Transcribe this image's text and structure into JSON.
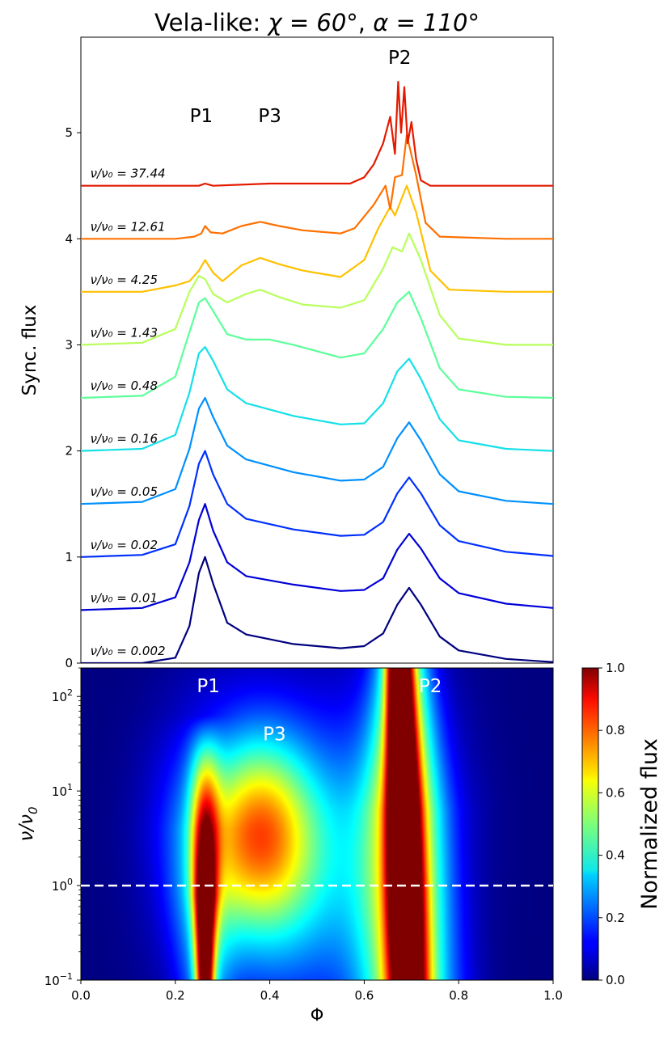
{
  "chart_data": [
    {
      "type": "line",
      "title_parts": {
        "prefix": "Vela-like: ",
        "chi": "χ = 60°",
        "sep": ",  ",
        "alpha": "α = 110°"
      },
      "ylabel": "Sync. flux",
      "xlim": [
        0.0,
        1.0
      ],
      "ylim": [
        0.0,
        5.9
      ],
      "yticks": [
        "0",
        "1",
        "2",
        "3",
        "4",
        "5"
      ],
      "grid": false,
      "offset_step": 0.5,
      "peak_labels": [
        "P1",
        "P3",
        "P2"
      ],
      "peak_label_positions": [
        {
          "label": "P1",
          "x": 0.255,
          "y": 5.1
        },
        {
          "label": "P3",
          "x": 0.4,
          "y": 5.1
        },
        {
          "label": "P2",
          "x": 0.675,
          "y": 5.65
        }
      ],
      "series": [
        {
          "name": "ν/ν₀ = 0.002",
          "label_text": "ν/ν₀ = 0.002",
          "offset": 0.0,
          "color": "#00007f",
          "x": [
            0.0,
            0.13,
            0.2,
            0.23,
            0.25,
            0.263,
            0.28,
            0.31,
            0.35,
            0.45,
            0.55,
            0.6,
            0.64,
            0.67,
            0.695,
            0.72,
            0.76,
            0.8,
            0.9,
            1.0
          ],
          "y": [
            0.0,
            0.0,
            0.05,
            0.35,
            0.85,
            1.0,
            0.75,
            0.38,
            0.27,
            0.18,
            0.14,
            0.16,
            0.28,
            0.55,
            0.71,
            0.55,
            0.25,
            0.12,
            0.04,
            0.01
          ]
        },
        {
          "name": "ν/ν₀ = 0.01",
          "label_text": "ν/ν₀ = 0.01",
          "offset": 0.5,
          "color": "#0000d8",
          "x": [
            0.0,
            0.13,
            0.2,
            0.23,
            0.25,
            0.263,
            0.28,
            0.31,
            0.35,
            0.45,
            0.55,
            0.6,
            0.64,
            0.67,
            0.695,
            0.72,
            0.76,
            0.8,
            0.9,
            1.0
          ],
          "y": [
            0.0,
            0.02,
            0.12,
            0.45,
            0.85,
            1.0,
            0.75,
            0.45,
            0.32,
            0.24,
            0.18,
            0.19,
            0.3,
            0.57,
            0.72,
            0.58,
            0.3,
            0.16,
            0.06,
            0.02
          ]
        },
        {
          "name": "ν/ν₀ = 0.02",
          "label_text": "ν/ν₀ = 0.02",
          "offset": 1.0,
          "color": "#0030ff",
          "x": [
            0.0,
            0.13,
            0.2,
            0.23,
            0.25,
            0.263,
            0.28,
            0.31,
            0.35,
            0.45,
            0.55,
            0.6,
            0.64,
            0.67,
            0.695,
            0.72,
            0.76,
            0.8,
            0.9,
            1.0
          ],
          "y": [
            0.0,
            0.02,
            0.12,
            0.48,
            0.88,
            1.0,
            0.78,
            0.5,
            0.36,
            0.26,
            0.2,
            0.21,
            0.33,
            0.6,
            0.75,
            0.6,
            0.3,
            0.15,
            0.05,
            0.01
          ]
        },
        {
          "name": "ν/ν₀ = 0.05",
          "label_text": "ν/ν₀ = 0.05",
          "offset": 1.5,
          "color": "#0090ff",
          "x": [
            0.0,
            0.13,
            0.2,
            0.23,
            0.25,
            0.263,
            0.28,
            0.31,
            0.35,
            0.45,
            0.55,
            0.6,
            0.64,
            0.67,
            0.695,
            0.72,
            0.76,
            0.8,
            0.9,
            1.0
          ],
          "y": [
            0.0,
            0.02,
            0.14,
            0.52,
            0.9,
            1.0,
            0.82,
            0.55,
            0.42,
            0.3,
            0.22,
            0.23,
            0.35,
            0.62,
            0.77,
            0.6,
            0.28,
            0.12,
            0.03,
            0.0
          ]
        },
        {
          "name": "ν/ν₀ = 0.16",
          "label_text": "ν/ν₀ = 0.16",
          "offset": 2.0,
          "color": "#15e0e8",
          "x": [
            0.0,
            0.13,
            0.2,
            0.23,
            0.25,
            0.263,
            0.28,
            0.31,
            0.35,
            0.45,
            0.55,
            0.6,
            0.64,
            0.67,
            0.695,
            0.72,
            0.76,
            0.8,
            0.9,
            1.0
          ],
          "y": [
            0.0,
            0.02,
            0.15,
            0.55,
            0.92,
            0.98,
            0.85,
            0.58,
            0.45,
            0.33,
            0.25,
            0.26,
            0.45,
            0.75,
            0.87,
            0.68,
            0.3,
            0.1,
            0.02,
            0.0
          ]
        },
        {
          "name": "ν/ν₀ = 0.48",
          "label_text": "ν/ν₀ = 0.48",
          "offset": 2.5,
          "color": "#5cff9a",
          "x": [
            0.0,
            0.13,
            0.2,
            0.23,
            0.25,
            0.263,
            0.28,
            0.31,
            0.35,
            0.4,
            0.45,
            0.55,
            0.6,
            0.64,
            0.67,
            0.695,
            0.72,
            0.76,
            0.8,
            0.9,
            1.0
          ],
          "y": [
            0.0,
            0.02,
            0.2,
            0.62,
            0.9,
            0.94,
            0.82,
            0.6,
            0.55,
            0.55,
            0.5,
            0.38,
            0.42,
            0.65,
            0.9,
            1.0,
            0.75,
            0.28,
            0.08,
            0.01,
            0.0
          ]
        },
        {
          "name": "ν/ν₀ = 1.43",
          "label_text": "ν/ν₀ = 1.43",
          "offset": 3.0,
          "color": "#b8ff5c",
          "x": [
            0.0,
            0.13,
            0.2,
            0.23,
            0.25,
            0.263,
            0.28,
            0.31,
            0.35,
            0.38,
            0.42,
            0.47,
            0.55,
            0.6,
            0.64,
            0.66,
            0.68,
            0.695,
            0.72,
            0.76,
            0.8,
            0.9,
            1.0
          ],
          "y": [
            0.0,
            0.02,
            0.15,
            0.5,
            0.65,
            0.62,
            0.48,
            0.4,
            0.48,
            0.52,
            0.45,
            0.38,
            0.35,
            0.42,
            0.72,
            0.92,
            0.88,
            1.05,
            0.8,
            0.28,
            0.06,
            0.0,
            0.0
          ]
        },
        {
          "name": "ν/ν₀ = 4.25",
          "label_text": "ν/ν₀ = 4.25",
          "offset": 3.5,
          "color": "#ffc000",
          "x": [
            0.0,
            0.13,
            0.2,
            0.23,
            0.25,
            0.263,
            0.28,
            0.3,
            0.34,
            0.38,
            0.42,
            0.47,
            0.55,
            0.6,
            0.63,
            0.655,
            0.665,
            0.69,
            0.71,
            0.74,
            0.78,
            0.9,
            1.0
          ],
          "y": [
            0.0,
            0.0,
            0.06,
            0.1,
            0.2,
            0.3,
            0.18,
            0.1,
            0.25,
            0.32,
            0.26,
            0.2,
            0.14,
            0.3,
            0.6,
            0.8,
            0.72,
            1.0,
            0.75,
            0.2,
            0.02,
            0.0,
            0.0
          ]
        },
        {
          "name": "ν/ν₀ = 12.61",
          "label_text": "ν/ν₀ = 12.61",
          "offset": 4.0,
          "color": "#ff7000",
          "x": [
            0.0,
            0.2,
            0.24,
            0.255,
            0.263,
            0.275,
            0.3,
            0.34,
            0.38,
            0.42,
            0.47,
            0.55,
            0.58,
            0.62,
            0.645,
            0.655,
            0.665,
            0.68,
            0.69,
            0.71,
            0.73,
            0.76,
            0.9,
            1.0
          ],
          "y": [
            0.0,
            0.0,
            0.02,
            0.05,
            0.12,
            0.06,
            0.05,
            0.12,
            0.16,
            0.12,
            0.08,
            0.05,
            0.1,
            0.32,
            0.5,
            0.28,
            0.58,
            0.6,
            0.98,
            0.6,
            0.15,
            0.02,
            0.0,
            0.0
          ]
        },
        {
          "name": "ν/ν₀ = 37.44",
          "label_text": "ν/ν₀ = 37.44",
          "offset": 4.5,
          "color": "#e31a00",
          "x": [
            0.0,
            0.25,
            0.263,
            0.28,
            0.4,
            0.57,
            0.6,
            0.62,
            0.64,
            0.655,
            0.665,
            0.672,
            0.678,
            0.685,
            0.692,
            0.7,
            0.71,
            0.72,
            0.74,
            1.0
          ],
          "y": [
            0.0,
            0.0,
            0.02,
            0.0,
            0.02,
            0.02,
            0.08,
            0.2,
            0.4,
            0.65,
            0.3,
            0.98,
            0.5,
            0.93,
            0.4,
            0.6,
            0.25,
            0.05,
            0.0,
            0.0
          ]
        }
      ]
    },
    {
      "type": "heatmap",
      "xlabel": "Φ",
      "ylabel_base": "ν/ν",
      "ylabel_sub": "0",
      "xlim": [
        0.0,
        1.0
      ],
      "ylim": [
        0.1,
        200
      ],
      "log_y": true,
      "xticks": [
        "0.0",
        "0.2",
        "0.4",
        "0.6",
        "0.8",
        "1.0"
      ],
      "yticks": [
        {
          "value": 0.1,
          "base": "10",
          "exp": "−1"
        },
        {
          "value": 1,
          "base": "10",
          "exp": "0"
        },
        {
          "value": 10,
          "base": "10",
          "exp": "1"
        },
        {
          "value": 100,
          "base": "10",
          "exp": "2"
        }
      ],
      "reference_line": {
        "y": 1,
        "style": "dashed",
        "color": "#ffffff"
      },
      "annotations": [
        {
          "text": "P1",
          "x": 0.27,
          "y": 130
        },
        {
          "text": "P3",
          "x": 0.41,
          "y": 40
        },
        {
          "text": "P2",
          "x": 0.74,
          "y": 130
        }
      ],
      "colormap": "jet",
      "colorbar": {
        "label": "Normalized flux",
        "range": [
          0.0,
          1.0
        ],
        "ticks": [
          "0.0",
          "0.2",
          "0.4",
          "0.6",
          "0.8",
          "1.0"
        ]
      }
    }
  ]
}
